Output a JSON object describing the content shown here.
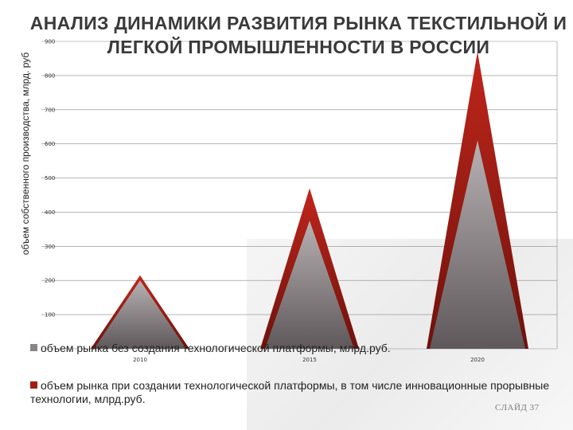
{
  "title": "АНАЛИЗ ДИНАМИКИ РАЗВИТИЯ РЫНКА ТЕКСТИЛЬНОЙ И ЛЕГКОЙ ПРОМЫШЛЕННОСТИ В РОССИИ",
  "slide_number": "СЛАЙД 37",
  "colors": {
    "series_gray": "#8a8485",
    "series_red": "#a11d14",
    "grid": "#8a8a8a"
  },
  "chart_data": {
    "type": "area",
    "title": "АНАЛИЗ ДИНАМИКИ РАЗВИТИЯ РЫНКА ТЕКСТИЛЬНОЙ И ЛЕГКОЙ ПРОМЫШЛЕННОСТИ В РОССИИ",
    "ylabel": "объем собственного производства, млрд. руб",
    "xlabel": "",
    "categories": [
      "2010",
      "2015",
      "2020"
    ],
    "ylim": [
      0,
      900
    ],
    "yticks": [
      100,
      200,
      300,
      400,
      500,
      600,
      700,
      800,
      900
    ],
    "grid": true,
    "legend": "bottom",
    "series": [
      {
        "name": "объем рынка без создания технологической платформы, млрд.руб.",
        "values": [
          200,
          375,
          610
        ],
        "color": "#8a8485"
      },
      {
        "name": "объем рынка при создании технологической платформы, в том числе инновационные прорывные технологии, млрд.руб.",
        "values": [
          215,
          470,
          870
        ],
        "color": "#a11d14"
      }
    ]
  }
}
